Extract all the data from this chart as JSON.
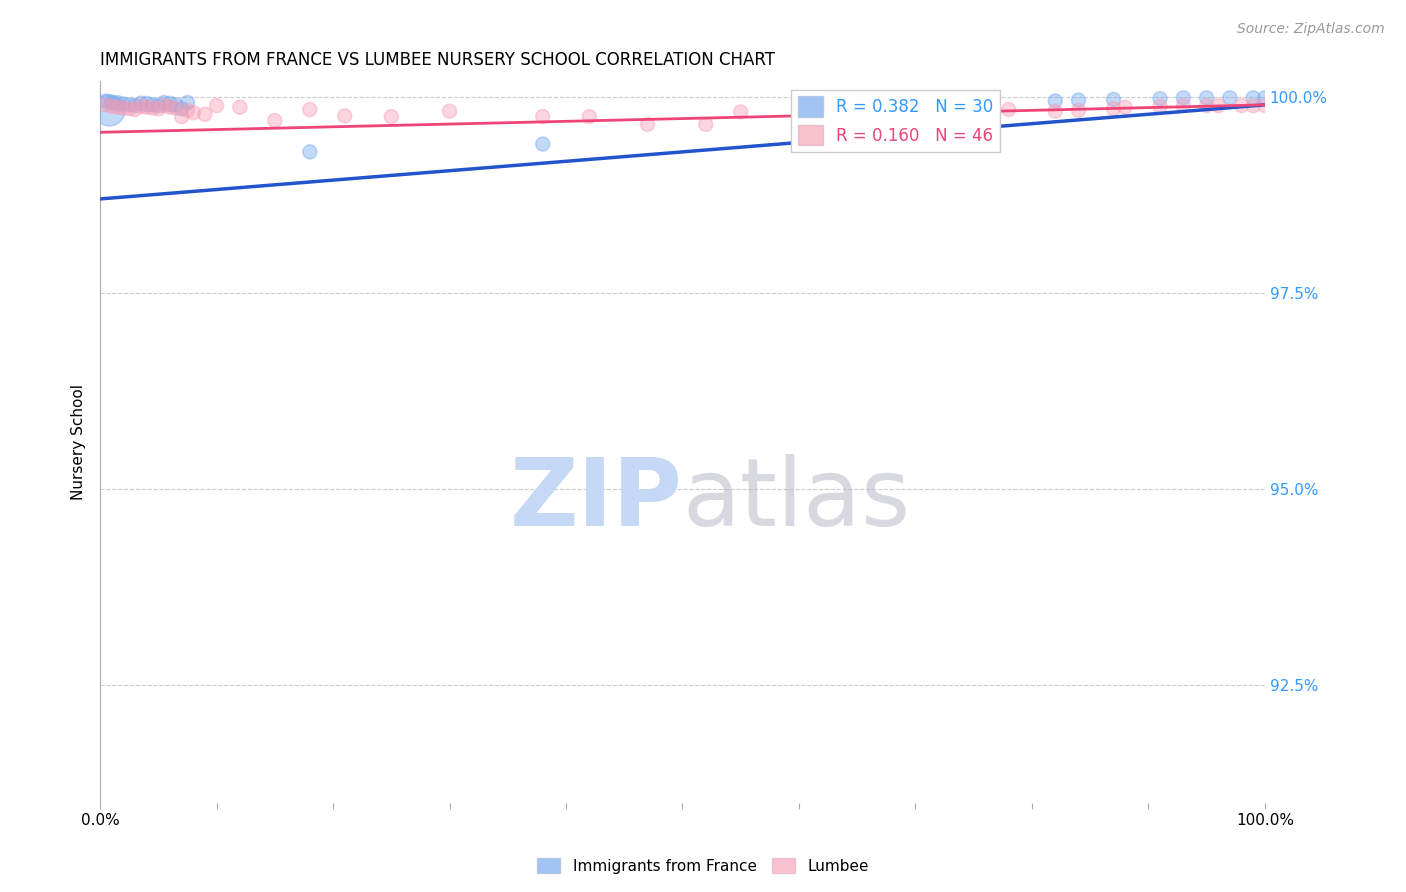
{
  "title": "IMMIGRANTS FROM FRANCE VS LUMBEE NURSERY SCHOOL CORRELATION CHART",
  "source": "Source: ZipAtlas.com",
  "ylabel": "Nursery School",
  "ylabel_right_labels": [
    "100.0%",
    "97.5%",
    "95.0%",
    "92.5%"
  ],
  "ylabel_right_values": [
    1.0,
    0.975,
    0.95,
    0.925
  ],
  "legend_r_values": [
    "0.382",
    "0.160"
  ],
  "legend_n_values": [
    "30",
    "46"
  ],
  "blue_scatter_x": [
    0.005,
    0.01,
    0.015,
    0.02,
    0.025,
    0.03,
    0.035,
    0.04,
    0.045,
    0.05,
    0.055,
    0.06,
    0.065,
    0.07,
    0.075,
    0.008,
    0.18,
    0.38,
    0.6,
    0.63,
    0.65,
    0.82,
    0.84,
    0.87,
    0.91,
    0.93,
    0.95,
    0.97,
    0.99,
    1.0
  ],
  "blue_scatter_y": [
    0.9995,
    0.9993,
    0.9992,
    0.9991,
    0.999,
    0.9989,
    0.9992,
    0.9991,
    0.999,
    0.9989,
    0.9993,
    0.9991,
    0.999,
    0.9985,
    0.9993,
    0.9983,
    0.993,
    0.994,
    0.996,
    0.997,
    0.9975,
    0.9995,
    0.9996,
    0.9997,
    0.9998,
    0.9999,
    0.9999,
    0.9999,
    0.9999,
    0.9999
  ],
  "blue_scatter_sizes": [
    100,
    100,
    120,
    100,
    100,
    100,
    100,
    120,
    100,
    100,
    100,
    120,
    100,
    100,
    100,
    500,
    100,
    100,
    100,
    100,
    100,
    100,
    100,
    100,
    100,
    100,
    100,
    100,
    100,
    100
  ],
  "pink_scatter_x": [
    0.005,
    0.01,
    0.015,
    0.02,
    0.025,
    0.03,
    0.035,
    0.04,
    0.045,
    0.05,
    0.055,
    0.06,
    0.065,
    0.07,
    0.075,
    0.08,
    0.09,
    0.1,
    0.12,
    0.15,
    0.18,
    0.21,
    0.25,
    0.3,
    0.38,
    0.42,
    0.47,
    0.52,
    0.55,
    0.6,
    0.63,
    0.68,
    0.72,
    0.75,
    0.78,
    0.82,
    0.84,
    0.87,
    0.88,
    0.91,
    0.93,
    0.95,
    0.96,
    0.98,
    0.99,
    1.0
  ],
  "pink_scatter_y": [
    0.999,
    0.9988,
    0.9987,
    0.9986,
    0.9985,
    0.9984,
    0.9988,
    0.9987,
    0.9986,
    0.9985,
    0.9989,
    0.9987,
    0.9986,
    0.9975,
    0.9983,
    0.998,
    0.9978,
    0.9989,
    0.9987,
    0.997,
    0.9984,
    0.9976,
    0.9975,
    0.9982,
    0.9975,
    0.9975,
    0.9965,
    0.9965,
    0.9981,
    0.998,
    0.9985,
    0.9963,
    0.9981,
    0.998,
    0.9984,
    0.9982,
    0.9983,
    0.9985,
    0.9987,
    0.9988,
    0.9989,
    0.9989,
    0.9989,
    0.9989,
    0.9989,
    0.9989
  ],
  "pink_scatter_sizes": [
    100,
    100,
    100,
    100,
    100,
    100,
    100,
    100,
    100,
    100,
    100,
    100,
    100,
    100,
    100,
    100,
    100,
    100,
    100,
    100,
    100,
    100,
    100,
    100,
    100,
    100,
    100,
    100,
    100,
    100,
    100,
    100,
    100,
    100,
    100,
    100,
    100,
    100,
    100,
    100,
    100,
    100,
    100,
    100,
    100,
    100
  ],
  "blue_line_x": [
    0.0,
    1.0
  ],
  "blue_line_y": [
    0.987,
    0.999
  ],
  "pink_line_x": [
    0.0,
    1.0
  ],
  "pink_line_y": [
    0.9955,
    0.999
  ],
  "xlim": [
    0.0,
    1.0
  ],
  "ylim": [
    0.91,
    1.002
  ],
  "blue_color": "#7aabf0",
  "pink_color": "#f799b0",
  "blue_line_color": "#2255cc",
  "pink_line_color": "#ee4477",
  "grid_color": "#cccccc",
  "right_axis_color": "#3399ff",
  "title_fontsize": 12,
  "source_fontsize": 10
}
